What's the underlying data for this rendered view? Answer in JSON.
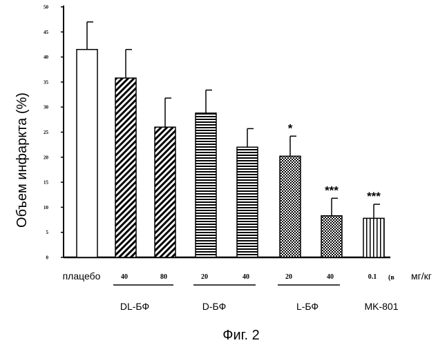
{
  "chart_data": {
    "type": "bar",
    "ylabel": "Объем инфаркта (%)",
    "ylim": [
      0,
      50
    ],
    "yticks": [
      0,
      5,
      10,
      15,
      20,
      25,
      30,
      35,
      40,
      45,
      50
    ],
    "unit_label": "мг/кг",
    "unit_prefix": "(в",
    "caption": "Фиг. 2",
    "placebo_label": "плацебо",
    "bars": [
      {
        "group": "плацебо",
        "dose": "",
        "value": 41.5,
        "error": 5.5,
        "pattern": "none",
        "sig": ""
      },
      {
        "group": "DL-БФ",
        "dose": "40",
        "value": 35.8,
        "error": 5.7,
        "pattern": "diag",
        "sig": ""
      },
      {
        "group": "DL-БФ",
        "dose": "80",
        "value": 26.0,
        "error": 5.8,
        "pattern": "diag",
        "sig": ""
      },
      {
        "group": "D-БФ",
        "dose": "20",
        "value": 28.8,
        "error": 4.6,
        "pattern": "horiz",
        "sig": ""
      },
      {
        "group": "D-БФ",
        "dose": "40",
        "value": 22.0,
        "error": 3.7,
        "pattern": "horiz",
        "sig": ""
      },
      {
        "group": "L-БФ",
        "dose": "20",
        "value": 20.2,
        "error": 4.0,
        "pattern": "cross",
        "sig": "*"
      },
      {
        "group": "L-БФ",
        "dose": "40",
        "value": 8.3,
        "error": 3.5,
        "pattern": "cross",
        "sig": "***"
      },
      {
        "group": "MK-801",
        "dose": "0.1",
        "value": 7.8,
        "error": 2.8,
        "pattern": "vert",
        "sig": "***"
      }
    ],
    "groups": [
      {
        "name": "DL-БФ",
        "bars": [
          1,
          2
        ]
      },
      {
        "name": "D-БФ",
        "bars": [
          3,
          4
        ]
      },
      {
        "name": "L-БФ",
        "bars": [
          5,
          6
        ]
      },
      {
        "name": "MK-801",
        "bars": [
          7
        ]
      }
    ]
  }
}
